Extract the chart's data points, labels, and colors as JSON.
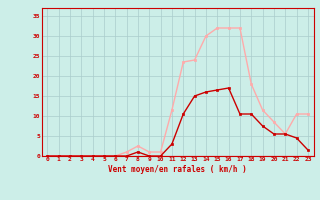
{
  "x": [
    0,
    1,
    2,
    3,
    4,
    5,
    6,
    7,
    8,
    9,
    10,
    11,
    12,
    13,
    14,
    15,
    16,
    17,
    18,
    19,
    20,
    21,
    22,
    23
  ],
  "y_mean": [
    0,
    0,
    0,
    0,
    0,
    0,
    0,
    0,
    1,
    0,
    0,
    3,
    10.5,
    15,
    16,
    16.5,
    17,
    10.5,
    10.5,
    7.5,
    5.5,
    5.5,
    4.5,
    1.5
  ],
  "y_gust": [
    0,
    0,
    0,
    0,
    0,
    0,
    0,
    1,
    2.5,
    1,
    1,
    11.5,
    23.5,
    24,
    30,
    32,
    32,
    32,
    18,
    11.5,
    8.5,
    5.5,
    10.5,
    10.5
  ],
  "color_mean": "#cc0000",
  "color_gust": "#ffaaaa",
  "bg_color": "#cceee8",
  "grid_color": "#aacccc",
  "xlabel": "Vent moyen/en rafales ( km/h )",
  "ylabel_ticks": [
    0,
    5,
    10,
    15,
    20,
    25,
    30,
    35
  ],
  "ylim": [
    0,
    37
  ],
  "xlim": [
    -0.5,
    23.5
  ]
}
